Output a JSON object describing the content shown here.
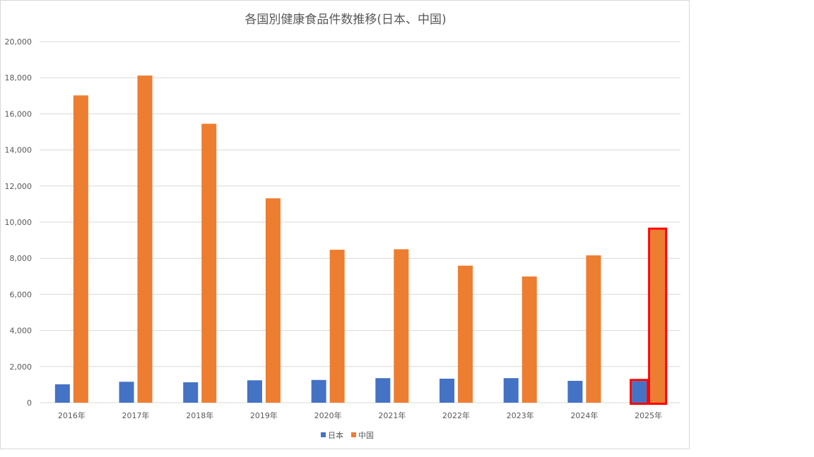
{
  "chart_data": {
    "type": "bar",
    "title": "各国別健康食品件数推移(日本、中国)",
    "xlabel": "",
    "ylabel": "",
    "categories": [
      "2016年",
      "2017年",
      "2018年",
      "2019年",
      "2020年",
      "2021年",
      "2022年",
      "2023年",
      "2024年",
      "2025年"
    ],
    "series": [
      {
        "name": "日本",
        "color": "#4472c4",
        "values": [
          1020,
          1160,
          1130,
          1240,
          1260,
          1360,
          1330,
          1360,
          1210,
          1200
        ]
      },
      {
        "name": "中国",
        "color": "#ed7d31",
        "values": [
          17020,
          18120,
          15450,
          11320,
          8470,
          8500,
          7590,
          6990,
          8160,
          9580
        ]
      }
    ],
    "ylim": [
      0,
      20000
    ],
    "yticks": [
      "0",
      "2,000",
      "4,000",
      "6,000",
      "8,000",
      "10,000",
      "12,000",
      "14,000",
      "16,000",
      "18,000",
      "20,000"
    ],
    "grid": true,
    "legend_position": "bottom",
    "highlight": {
      "category": "2025年",
      "color": "#ff0000"
    }
  }
}
